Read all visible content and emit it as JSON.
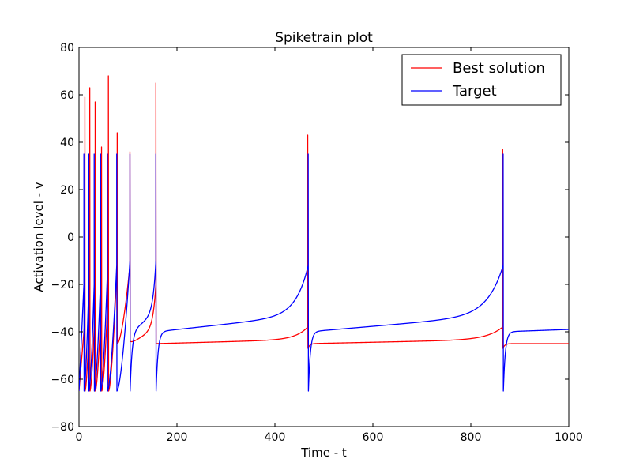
{
  "chart_data": {
    "type": "line",
    "title": "Spiketrain plot",
    "xlabel": "Time - t",
    "ylabel": "Activation level - v",
    "xlim": [
      0,
      1000
    ],
    "ylim": [
      -80,
      80
    ],
    "xticks": [
      0,
      200,
      400,
      600,
      800,
      1000
    ],
    "yticks": [
      -80,
      -60,
      -40,
      -20,
      0,
      20,
      40,
      60,
      80
    ],
    "grid": false,
    "legend_position": "top-right",
    "series": [
      {
        "name": "Best solution",
        "color": "#ff0000",
        "base": -45,
        "spikes": [
          {
            "t": 12,
            "peak": 59,
            "pre": -35,
            "post": -65
          },
          {
            "t": 22,
            "peak": 63,
            "pre": -30,
            "post": -65
          },
          {
            "t": 33,
            "peak": 57,
            "pre": -28,
            "post": -65
          },
          {
            "t": 46,
            "peak": 38,
            "pre": -25,
            "post": -65
          },
          {
            "t": 60,
            "peak": 68,
            "pre": -20,
            "post": -65
          },
          {
            "t": 78,
            "peak": 44,
            "pre": -10,
            "post": -45
          },
          {
            "t": 104,
            "peak": 36,
            "pre": -12,
            "post": -44
          },
          {
            "t": 157,
            "peak": 65,
            "pre": -20,
            "post": -45
          },
          {
            "t": 467,
            "peak": 43,
            "pre": -38,
            "post": -47
          },
          {
            "t": 865,
            "peak": 37,
            "pre": -38,
            "post": -47
          }
        ],
        "end_value": -45
      },
      {
        "name": "Target",
        "color": "#0000ff",
        "base": -40,
        "spikes": [
          {
            "t": 10,
            "peak": 35,
            "pre": -20,
            "post": -65
          },
          {
            "t": 20,
            "peak": 35,
            "pre": -20,
            "post": -65
          },
          {
            "t": 31,
            "peak": 35,
            "pre": -20,
            "post": -65
          },
          {
            "t": 44,
            "peak": 35,
            "pre": -18,
            "post": -65
          },
          {
            "t": 58,
            "peak": 35,
            "pre": -15,
            "post": -65
          },
          {
            "t": 77,
            "peak": 35,
            "pre": -12,
            "post": -65
          },
          {
            "t": 104,
            "peak": 35,
            "pre": -10,
            "post": -65
          },
          {
            "t": 157,
            "peak": 35,
            "pre": -10,
            "post": -65
          },
          {
            "t": 468,
            "peak": 35,
            "pre": -12,
            "post": -65
          },
          {
            "t": 866,
            "peak": 35,
            "pre": -12,
            "post": -65
          }
        ],
        "end_value": -39
      }
    ]
  }
}
